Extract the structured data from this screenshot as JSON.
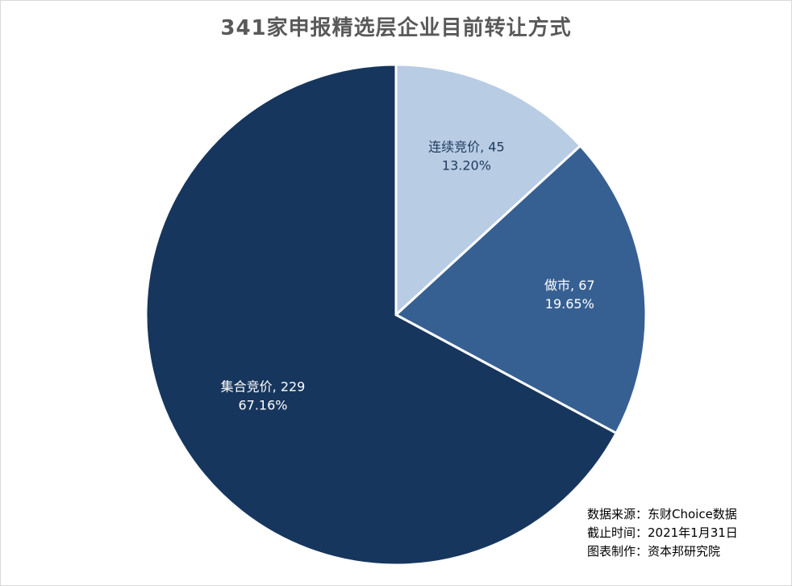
{
  "chart_data": {
    "type": "pie",
    "title": "341家申报精选层企业目前转让方式",
    "slices": [
      {
        "name": "连续竞价",
        "value": 45,
        "percent": "13.20%",
        "color": "#b8cce4",
        "label_color": "#1f3b5c"
      },
      {
        "name": "做市",
        "value": 67,
        "percent": "19.65%",
        "color": "#376092",
        "label_color": "#ffffff"
      },
      {
        "name": "集合竞价",
        "value": 229,
        "percent": "67.16%",
        "color": "#17365d",
        "label_color": "#ffffff"
      }
    ],
    "start_angle_deg": 0,
    "direction": "clockwise",
    "legend": "none"
  },
  "notes": {
    "source": "数据来源：东财Choice数据",
    "cutoff": "截止时间：2021年1月31日",
    "maker": "图表制作：资本邦研究院"
  }
}
